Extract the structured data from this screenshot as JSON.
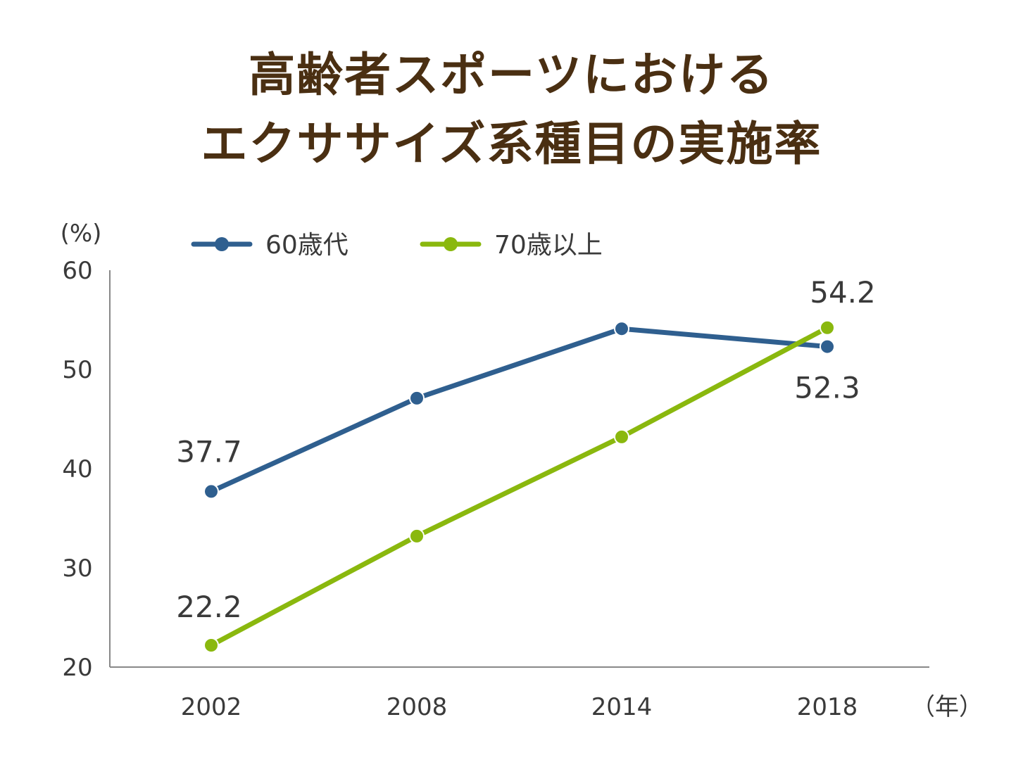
{
  "title_lines": [
    "高齢者スポーツにおける",
    "エクササイズ系種目の実施率"
  ],
  "chart_data": {
    "type": "line",
    "title": "高齢者スポーツにおけるエクササイズ系種目の実施率",
    "y_unit": "(%)",
    "x_unit": "（年）",
    "categories": [
      "2002",
      "2008",
      "2014",
      "2018"
    ],
    "ylim": [
      20,
      60
    ],
    "yticks": [
      20,
      30,
      40,
      50,
      60
    ],
    "grid": false,
    "legend_position": "top",
    "series": [
      {
        "name": "60歳代",
        "color": "#2f5f8f",
        "values": [
          37.7,
          47.1,
          54.1,
          52.3
        ],
        "labels": [
          "37.7",
          "",
          "",
          "52.3"
        ]
      },
      {
        "name": "70歳以上",
        "color": "#8ab80e",
        "values": [
          22.2,
          33.2,
          43.2,
          54.2
        ],
        "labels": [
          "22.2",
          "",
          "",
          "54.2"
        ]
      }
    ]
  }
}
